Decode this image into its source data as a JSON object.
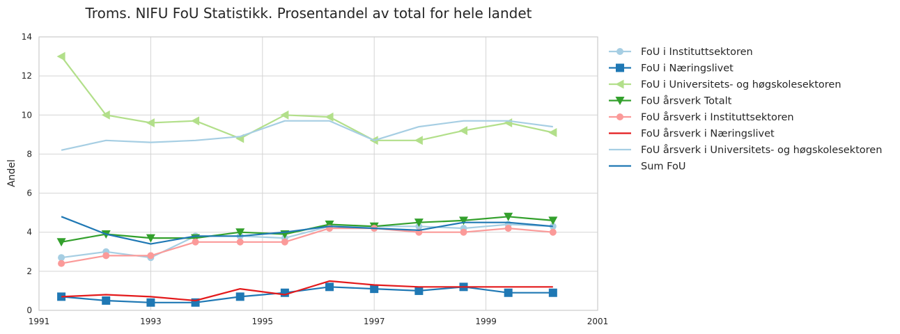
{
  "chart_data": {
    "type": "line",
    "title": "Troms. NIFU FoU Statistikk. Prosentandel av total for hele landet",
    "xlabel": "",
    "ylabel": "Andel",
    "xlim": [
      1991,
      2001
    ],
    "ylim": [
      0,
      14
    ],
    "xticks": [
      "1991",
      "1993",
      "1995",
      "1997",
      "1999",
      "2001"
    ],
    "yticks": [
      "0",
      "2",
      "4",
      "6",
      "8",
      "10",
      "12",
      "14"
    ],
    "grid": true,
    "legend_position": "outside-right-top",
    "x": [
      1991.4,
      1992.2,
      1993.0,
      1993.8,
      1994.6,
      1995.4,
      1996.2,
      1997.0,
      1997.8,
      1998.6,
      1999.4,
      2000.2
    ],
    "series": [
      {
        "name": "FoU i Instituttsektoren",
        "color": "#a6cee3",
        "marker": "circle",
        "values": [
          2.7,
          3.0,
          2.7,
          3.8,
          3.8,
          3.7,
          4.3,
          4.3,
          4.3,
          4.2,
          4.4,
          4.3
        ]
      },
      {
        "name": "FoU i Næringslivet",
        "color": "#1f78b4",
        "marker": "square",
        "values": [
          0.7,
          0.5,
          0.4,
          0.4,
          0.7,
          0.9,
          1.2,
          1.1,
          1.0,
          1.2,
          0.9,
          0.9
        ]
      },
      {
        "name": "FoU i Universitets- og høgskolesektoren",
        "color": "#b2df8a",
        "marker": "triangle-left",
        "values": [
          13.0,
          10.0,
          9.6,
          9.7,
          8.8,
          10.0,
          9.9,
          8.7,
          8.7,
          9.2,
          9.6,
          9.1
        ]
      },
      {
        "name": "FoU årsverk Totalt",
        "color": "#33a02c",
        "marker": "triangle-down",
        "values": [
          3.5,
          3.9,
          3.7,
          3.7,
          4.0,
          3.9,
          4.4,
          4.3,
          4.5,
          4.6,
          4.8,
          4.6
        ]
      },
      {
        "name": "FoU årsverk i Instituttsektoren",
        "color": "#fb9a99",
        "marker": "circle",
        "values": [
          2.4,
          2.8,
          2.8,
          3.5,
          3.5,
          3.5,
          4.2,
          4.2,
          4.0,
          4.0,
          4.2,
          4.0
        ]
      },
      {
        "name": "FoU årsverk i Næringslivet",
        "color": "#e31a1c",
        "marker": "none",
        "values": [
          0.7,
          0.8,
          0.7,
          0.5,
          1.1,
          0.8,
          1.5,
          1.3,
          1.2,
          1.2,
          1.2,
          1.2
        ]
      },
      {
        "name": "FoU årsverk i Universitets- og høgskolesektoren",
        "color": "#a6cee3",
        "marker": "none",
        "values": [
          8.2,
          8.7,
          8.6,
          8.7,
          8.9,
          9.7,
          9.7,
          8.7,
          9.4,
          9.7,
          9.7,
          9.4
        ]
      },
      {
        "name": "Sum FoU",
        "color": "#1f78b4",
        "marker": "none",
        "values": [
          4.8,
          3.9,
          3.4,
          3.8,
          3.8,
          4.0,
          4.3,
          4.2,
          4.1,
          4.5,
          4.5,
          4.3
        ]
      }
    ]
  }
}
